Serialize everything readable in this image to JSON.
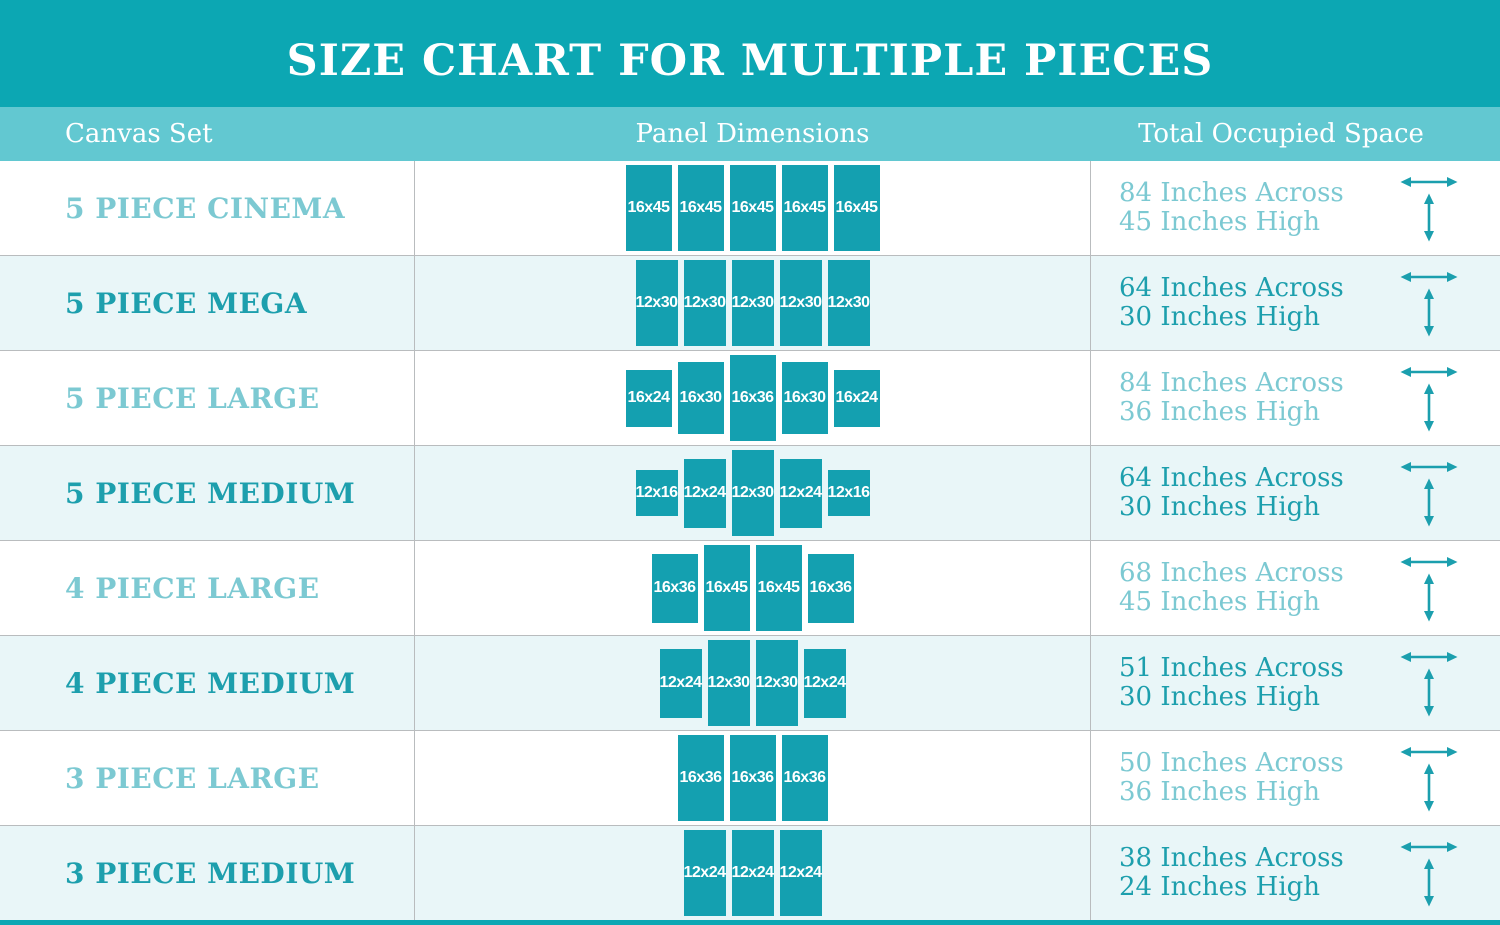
{
  "title": "SIZE CHART FOR MULTIPLE PIECES",
  "columns": {
    "canvas_set": "Canvas Set",
    "panel_dimensions": "Panel Dimensions",
    "total_space": "Total Occupied Space"
  },
  "colors": {
    "header-bg": "#0ca7b3",
    "subheader-bg": "#62c8d1",
    "box-fill": "#14a0b0",
    "row-alt-bg": "#e9f6f8",
    "text-dark": "#1d9fad",
    "text-light": "#7cc9d2",
    "arrow": "#1b9fae",
    "separator": "#b9bcbe"
  },
  "icons": {
    "width_arrow": "horizontal-double-arrow",
    "height_arrow": "vertical-double-arrow"
  },
  "rows": [
    {
      "name": "5 PIECE CINEMA",
      "panels": [
        "16x45",
        "16x45",
        "16x45",
        "16x45",
        "16x45"
      ],
      "across": "84 Inches Across",
      "high": "45 Inches High"
    },
    {
      "name": "5 PIECE MEGA",
      "panels": [
        "12x30",
        "12x30",
        "12x30",
        "12x30",
        "12x30"
      ],
      "across": "64 Inches Across",
      "high": "30 Inches High"
    },
    {
      "name": "5 PIECE LARGE",
      "panels": [
        "16x24",
        "16x30",
        "16x36",
        "16x30",
        "16x24"
      ],
      "across": "84 Inches Across",
      "high": "36 Inches High"
    },
    {
      "name": "5 PIECE MEDIUM",
      "panels": [
        "12x16",
        "12x24",
        "12x30",
        "12x24",
        "12x16"
      ],
      "across": "64 Inches Across",
      "high": "30 Inches High"
    },
    {
      "name": "4 PIECE LARGE",
      "panels": [
        "16x36",
        "16x45",
        "16x45",
        "16x36"
      ],
      "across": "68 Inches Across",
      "high": "45 Inches High"
    },
    {
      "name": "4 PIECE MEDIUM",
      "panels": [
        "12x24",
        "12x30",
        "12x30",
        "12x24"
      ],
      "across": "51 Inches Across",
      "high": "30 Inches High"
    },
    {
      "name": "3 PIECE LARGE",
      "panels": [
        "16x36",
        "16x36",
        "16x36"
      ],
      "across": "50 Inches Across",
      "high": "36 Inches High"
    },
    {
      "name": "3 PIECE MEDIUM",
      "panels": [
        "12x24",
        "12x24",
        "12x24"
      ],
      "across": "38 Inches Across",
      "high": "24 Inches High"
    }
  ]
}
